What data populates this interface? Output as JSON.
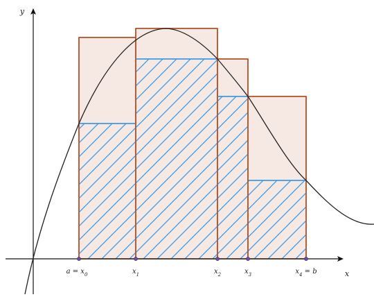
{
  "axes": {
    "x_label": "x",
    "y_label": "y"
  },
  "partition": [
    {
      "base": "a = x",
      "sub": "0",
      "suffix": ""
    },
    {
      "base": "x",
      "sub": "1",
      "suffix": ""
    },
    {
      "base": "x",
      "sub": "2",
      "suffix": ""
    },
    {
      "base": "x",
      "sub": "3",
      "suffix": ""
    },
    {
      "base": "x",
      "sub": "4",
      "suffix": " = b"
    }
  ],
  "colors": {
    "rect_stroke": "#b5532a",
    "rect_fill": "#f6e9e4",
    "hatch": "#3a9ae6",
    "curve": "#222222",
    "axis": "#111111",
    "point": "#6a4fa0"
  },
  "icons": [
    "x-axis-arrow-icon",
    "y-axis-arrow-icon"
  ]
}
